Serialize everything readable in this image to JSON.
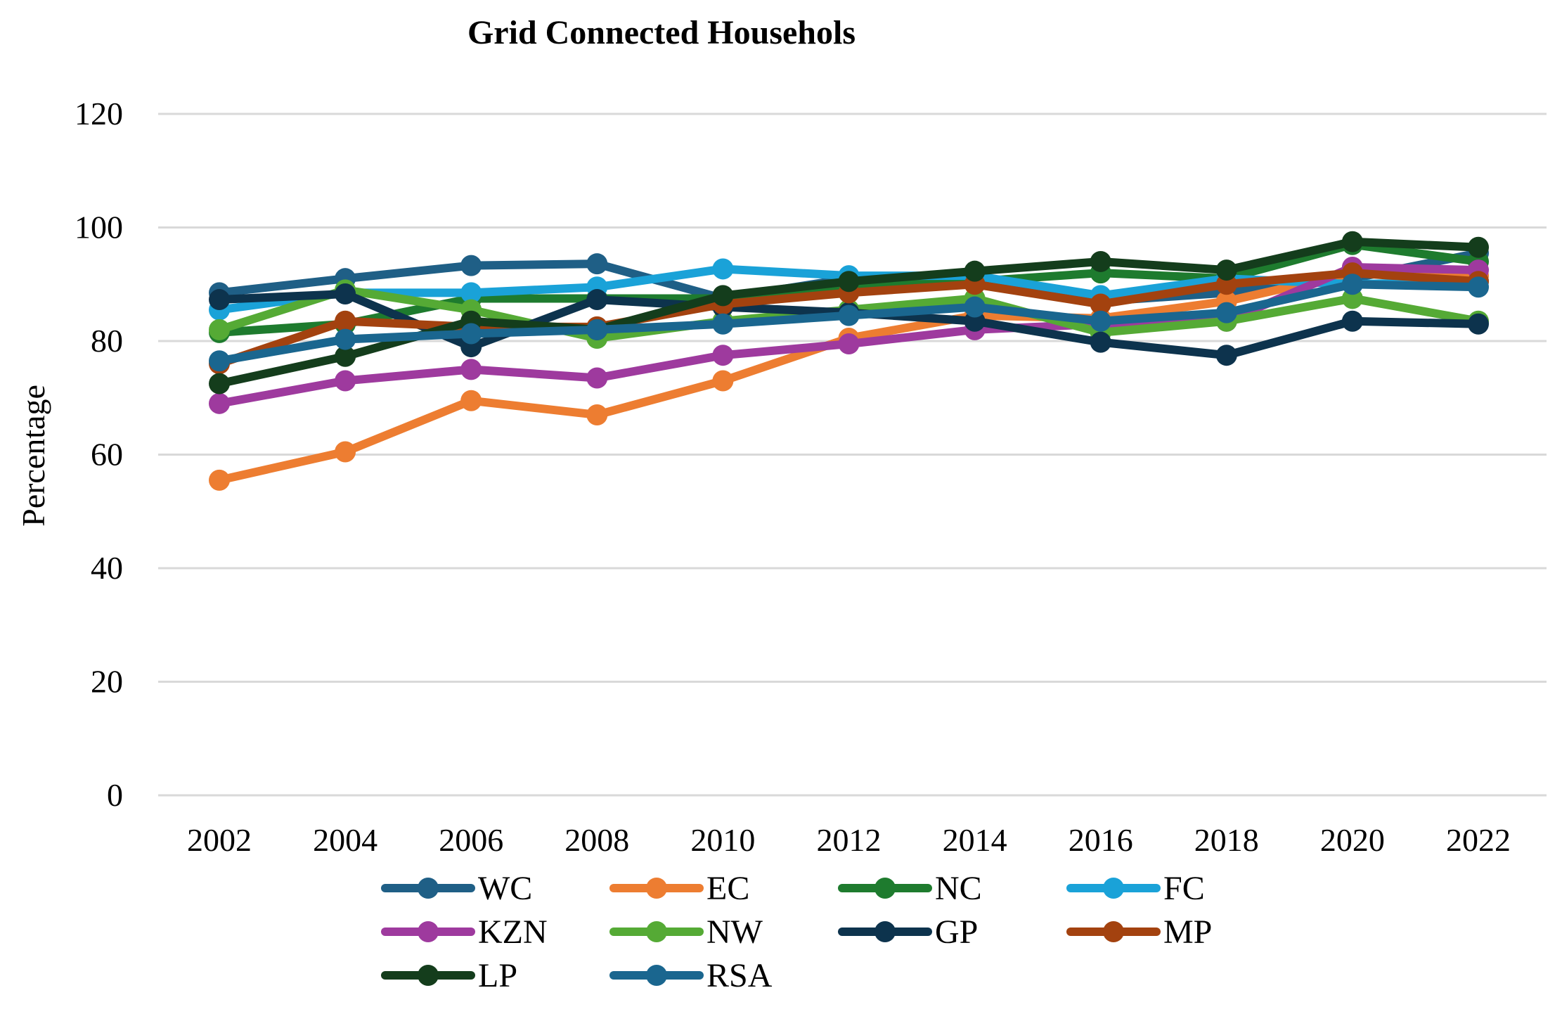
{
  "chart_data": {
    "type": "line",
    "title": "Grid Connected Househols",
    "xlabel": "",
    "ylabel": "Percentage",
    "ylim": [
      0,
      120
    ],
    "yticks": [
      0,
      20,
      40,
      60,
      80,
      100,
      120
    ],
    "grid": true,
    "legend_position": "bottom",
    "categories": [
      "2002",
      "2004",
      "2006",
      "2008",
      "2010",
      "2012",
      "2014",
      "2016",
      "2018",
      "2020",
      "2022"
    ],
    "series": [
      {
        "name": "WC",
        "color": "#1f5f86",
        "values": [
          88.5,
          91,
          93.3,
          93.6,
          87.5,
          91,
          91.5,
          87,
          88.5,
          91,
          95.5
        ]
      },
      {
        "name": "EC",
        "color": "#ed7d31",
        "values": [
          55.5,
          60.5,
          69.5,
          67,
          73,
          80.5,
          84.5,
          84,
          87,
          92,
          91.5
        ]
      },
      {
        "name": "NC",
        "color": "#1e7b2e",
        "values": [
          81.5,
          83,
          87.5,
          87.5,
          87.5,
          90,
          90.5,
          92,
          91,
          97,
          94
        ]
      },
      {
        "name": "FC",
        "color": "#1aa2d8",
        "values": [
          85.5,
          88.5,
          88.5,
          89.5,
          92.7,
          91.5,
          91.5,
          88,
          91,
          90,
          90.5
        ]
      },
      {
        "name": "KZN",
        "color": "#9e3a9e",
        "values": [
          69,
          73,
          75,
          73.5,
          77.5,
          79.5,
          82,
          83,
          83.5,
          93,
          92.5
        ]
      },
      {
        "name": "NW",
        "color": "#55aa35",
        "values": [
          82,
          89,
          85.5,
          80.5,
          83.5,
          85.5,
          87.5,
          81.5,
          83.5,
          87.5,
          83.5
        ]
      },
      {
        "name": "GP",
        "color": "#0d334d",
        "values": [
          87.3,
          88.3,
          79,
          87.3,
          86,
          85,
          83.5,
          79.8,
          77.5,
          83.5,
          83
        ]
      },
      {
        "name": "MP",
        "color": "#a3420f",
        "values": [
          76,
          83.5,
          82.5,
          82.5,
          86.5,
          88.5,
          90,
          86.5,
          90,
          92,
          90.5
        ]
      },
      {
        "name": "LP",
        "color": "#143d1c",
        "values": [
          72.5,
          77.3,
          83.5,
          82,
          88,
          90.5,
          92.3,
          94,
          92.5,
          97.5,
          96.5
        ]
      },
      {
        "name": "RSA",
        "color": "#1a668f",
        "values": [
          76.5,
          80.3,
          81.3,
          82,
          83,
          84.5,
          86,
          83.5,
          85,
          90,
          89.5
        ]
      }
    ]
  }
}
